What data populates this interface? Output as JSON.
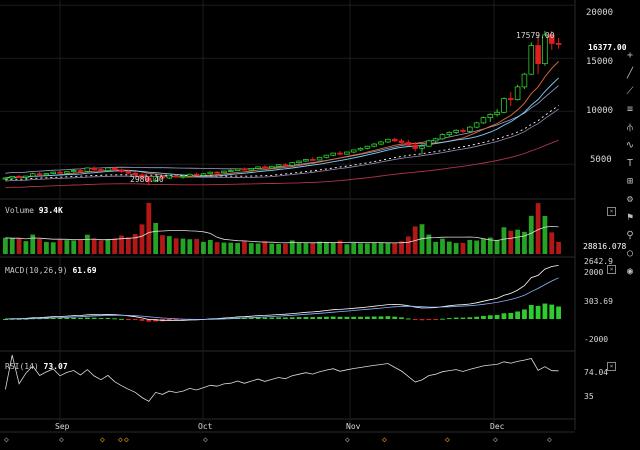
{
  "chart_data": {
    "type": "candlestick",
    "price_axis": {
      "ticks": [
        20000,
        15000,
        10000,
        5000
      ],
      "ylim": [
        2000,
        20500
      ]
    },
    "time_axis": {
      "ticks": [
        "Sep",
        "Oct",
        "Nov",
        "Dec"
      ]
    },
    "annotations": {
      "high_label": "17579.00",
      "low_label": "2980.40"
    },
    "last_price": "16377.00",
    "candles": [
      [
        3600,
        3800,
        3500,
        3700
      ],
      [
        3700,
        3900,
        3600,
        3850
      ],
      [
        3850,
        4000,
        3700,
        3750
      ],
      [
        3750,
        3900,
        3650,
        3880
      ],
      [
        3880,
        4200,
        3800,
        4100
      ],
      [
        4100,
        4250,
        3950,
        4000
      ],
      [
        4000,
        4150,
        3900,
        4120
      ],
      [
        4120,
        4300,
        4050,
        4250
      ],
      [
        4250,
        4400,
        4100,
        4150
      ],
      [
        4150,
        4350,
        4050,
        4300
      ],
      [
        4300,
        4500,
        4200,
        4400
      ],
      [
        4400,
        4550,
        4250,
        4320
      ],
      [
        4320,
        4700,
        4250,
        4650
      ],
      [
        4650,
        4800,
        4450,
        4500
      ],
      [
        4500,
        4600,
        4300,
        4400
      ],
      [
        4400,
        4700,
        4350,
        4650
      ],
      [
        4650,
        4750,
        4400,
        4450
      ],
      [
        4450,
        4600,
        4200,
        4300
      ],
      [
        4300,
        4400,
        4050,
        4150
      ],
      [
        4150,
        4300,
        3900,
        4000
      ],
      [
        4000,
        4150,
        3600,
        3700
      ],
      [
        3700,
        3850,
        2980,
        3400
      ],
      [
        3400,
        3900,
        3300,
        3850
      ],
      [
        3850,
        4000,
        3650,
        3700
      ],
      [
        3700,
        3950,
        3600,
        3900
      ],
      [
        3900,
        4050,
        3750,
        3800
      ],
      [
        3800,
        3950,
        3650,
        3880
      ],
      [
        3880,
        4100,
        3800,
        4050
      ],
      [
        4050,
        4200,
        3900,
        3950
      ],
      [
        3950,
        4150,
        3900,
        4100
      ],
      [
        4100,
        4300,
        4000,
        4250
      ],
      [
        4250,
        4350,
        4100,
        4200
      ],
      [
        4200,
        4400,
        4150,
        4350
      ],
      [
        4350,
        4500,
        4250,
        4400
      ],
      [
        4400,
        4600,
        4350,
        4550
      ],
      [
        4550,
        4700,
        4400,
        4450
      ],
      [
        4450,
        4650,
        4400,
        4600
      ],
      [
        4600,
        4800,
        4550,
        4750
      ],
      [
        4750,
        4900,
        4600,
        4650
      ],
      [
        4650,
        4850,
        4600,
        4800
      ],
      [
        4800,
        5000,
        4750,
        4950
      ],
      [
        4950,
        5100,
        4850,
        4900
      ],
      [
        4900,
        5200,
        4850,
        5150
      ],
      [
        5150,
        5350,
        5050,
        5300
      ],
      [
        5300,
        5500,
        5200,
        5450
      ],
      [
        5450,
        5650,
        5350,
        5400
      ],
      [
        5400,
        5700,
        5350,
        5650
      ],
      [
        5650,
        5900,
        5550,
        5850
      ],
      [
        5850,
        6100,
        5750,
        6050
      ],
      [
        6050,
        6250,
        5850,
        5950
      ],
      [
        5950,
        6200,
        5900,
        6150
      ],
      [
        6150,
        6400,
        6050,
        6350
      ],
      [
        6350,
        6600,
        6250,
        6500
      ],
      [
        6500,
        6750,
        6400,
        6700
      ],
      [
        6700,
        7000,
        6600,
        6900
      ],
      [
        6900,
        7200,
        6800,
        7100
      ],
      [
        7100,
        7400,
        7000,
        7350
      ],
      [
        7350,
        7500,
        7100,
        7200
      ],
      [
        7200,
        7400,
        6950,
        7050
      ],
      [
        7050,
        7300,
        6700,
        6800
      ],
      [
        6800,
        7100,
        6200,
        6500
      ],
      [
        6500,
        6900,
        5900,
        6700
      ],
      [
        6700,
        7300,
        6600,
        7200
      ],
      [
        7200,
        7500,
        7050,
        7400
      ],
      [
        7400,
        7900,
        7300,
        7800
      ],
      [
        7800,
        8100,
        7600,
        8000
      ],
      [
        8000,
        8300,
        7850,
        8200
      ],
      [
        8200,
        8400,
        7950,
        8100
      ],
      [
        8100,
        8600,
        8000,
        8500
      ],
      [
        8500,
        9000,
        8400,
        8900
      ],
      [
        8900,
        9500,
        8800,
        9400
      ],
      [
        9400,
        9800,
        9000,
        9700
      ],
      [
        9700,
        10200,
        9500,
        9900
      ],
      [
        9900,
        11300,
        9800,
        11200
      ],
      [
        11200,
        11800,
        10500,
        11100
      ],
      [
        11100,
        12500,
        11000,
        12300
      ],
      [
        12300,
        13600,
        12100,
        13500
      ],
      [
        13500,
        16500,
        13400,
        16200
      ],
      [
        16200,
        17200,
        13500,
        14500
      ],
      [
        14500,
        17579,
        14300,
        17200
      ],
      [
        17200,
        17579,
        15800,
        16400
      ],
      [
        16400,
        16900,
        15900,
        16377
      ]
    ],
    "volume_panel": {
      "label": "Volume",
      "value": "93.4K",
      "last": "28816.078"
    },
    "macd_panel": {
      "label": "MACD(10,26,9)",
      "value": "61.69",
      "ticks": [
        "2642.9",
        "2000",
        "303.69",
        "-2000"
      ]
    },
    "rsi_panel": {
      "label": "RSI(14)",
      "value": "73.07",
      "ticks": [
        "74.04",
        "35"
      ]
    }
  },
  "toolbar": {
    "tools": [
      "crosshair-icon",
      "line-tool-icon",
      "ray-tool-icon",
      "fib-tool-icon",
      "pitchfork-icon",
      "brush-icon",
      "text-tool-icon",
      "measure-icon",
      "settings-icon",
      "flag-icon",
      "zoom-icon",
      "circle-icon",
      "eye-icon"
    ]
  },
  "colors": {
    "up": "#2ecc2e",
    "down": "#e01e1e",
    "grid": "#1c1c1c",
    "marker": "#f0a020"
  }
}
